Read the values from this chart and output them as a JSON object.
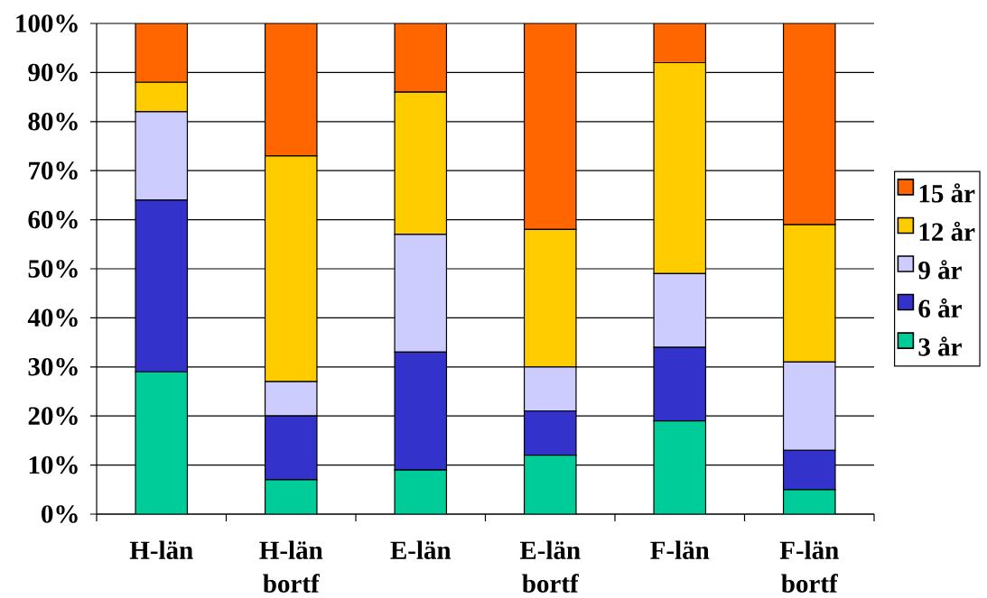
{
  "chart_data": {
    "type": "bar",
    "stacked": true,
    "categories": [
      "H-län",
      "H-län bortf",
      "E-län",
      "E-län bortf",
      "F-län",
      "F-län bortf"
    ],
    "series": [
      {
        "name": "3 år",
        "color": "#00cc99",
        "values": [
          29,
          7,
          9,
          12,
          19,
          5
        ]
      },
      {
        "name": "6 år",
        "color": "#3333cc",
        "values": [
          35,
          13,
          24,
          9,
          15,
          8
        ]
      },
      {
        "name": "9 år",
        "color": "#ccccff",
        "values": [
          18,
          7,
          24,
          9,
          15,
          18
        ]
      },
      {
        "name": "12 år",
        "color": "#ffcc00",
        "values": [
          6,
          46,
          29,
          28,
          43,
          28
        ]
      },
      {
        "name": "15 år",
        "color": "#ff6600",
        "values": [
          12,
          27,
          14,
          42,
          8,
          41
        ]
      }
    ],
    "ylim": [
      0,
      100
    ],
    "yticks": [
      {
        "value": 0,
        "label": "0%"
      },
      {
        "value": 10,
        "label": "10%"
      },
      {
        "value": 20,
        "label": "20%"
      },
      {
        "value": 30,
        "label": "30%"
      },
      {
        "value": 40,
        "label": "40%"
      },
      {
        "value": 50,
        "label": "50%"
      },
      {
        "value": 60,
        "label": "60%"
      },
      {
        "value": 70,
        "label": "70%"
      },
      {
        "value": 80,
        "label": "80%"
      },
      {
        "value": 90,
        "label": "90%"
      },
      {
        "value": 100,
        "label": "100%"
      }
    ],
    "grid": "y",
    "legend": "right"
  }
}
